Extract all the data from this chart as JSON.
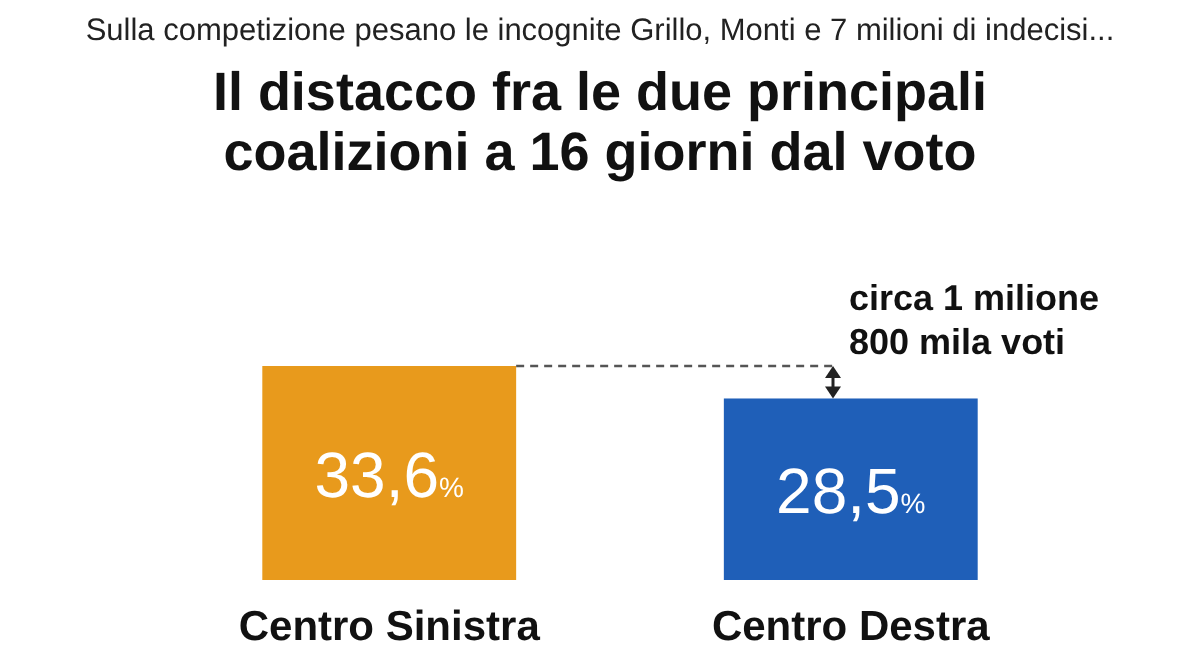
{
  "chart_data": {
    "type": "bar",
    "subtitle": "Sulla competizione pesano le incognite Grillo, Monti e 7 milioni di indecisi...",
    "title": "Il distacco fra le due principali coalizioni a 16 giorni dal voto",
    "categories": [
      "Centro Sinistra",
      "Centro Destra"
    ],
    "values": [
      33.6,
      28.5
    ],
    "colors": [
      "#e89a1c",
      "#1f5fb8"
    ],
    "value_labels": [
      "33,6%",
      "28,5%"
    ],
    "ref_lines": [
      {
        "axis": "y",
        "value": 33.6,
        "line_style": "dashed",
        "color": "#555555"
      }
    ],
    "annotations": [
      "circa 1 milione\n800 mila voti"
    ]
  }
}
